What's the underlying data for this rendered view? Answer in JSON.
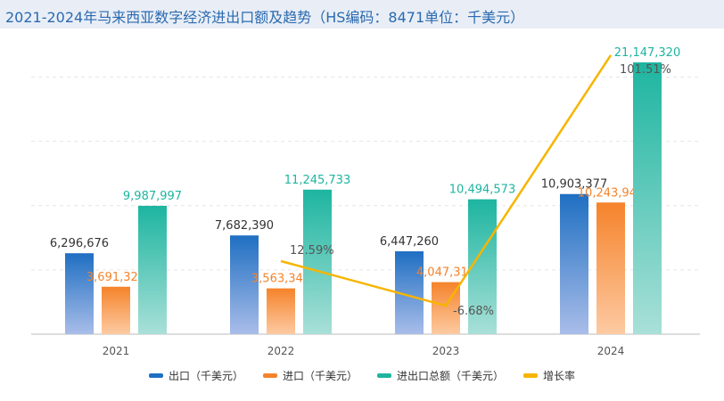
{
  "title": "2021-2024年马来西亚数字经济进出口额及趋势（HS编码：8471单位：千美元）",
  "chart_data": {
    "type": "bar+line",
    "categories": [
      "2021",
      "2022",
      "2023",
      "2024"
    ],
    "series": [
      {
        "name": "出口（千美元）",
        "type": "bar",
        "color": "#1f6fc2",
        "values": [
          6296676,
          7682390,
          6447260,
          10903377
        ],
        "labels": [
          "6,296,676",
          "7,682,390",
          "6,447,260",
          "10,903,377"
        ]
      },
      {
        "name": "进口（千美元）",
        "type": "bar",
        "color": "#f5832b",
        "values": [
          3691321,
          3563343,
          4047313,
          10243943
        ],
        "labels": [
          "3,691,321",
          "3,563,343",
          "4,047,313",
          "10,243,943"
        ]
      },
      {
        "name": "进出口总额（千美元）",
        "type": "bar",
        "color": "#1db5a0",
        "values": [
          9987997,
          11245733,
          10494573,
          21147320
        ],
        "labels": [
          "9,987,997",
          "11,245,733",
          "10,494,573",
          "21,147,320"
        ]
      },
      {
        "name": "增长率",
        "type": "line",
        "color": "#f7b500",
        "values": [
          null,
          12.59,
          -6.68,
          101.51
        ],
        "labels": [
          "",
          "12.59%",
          "-6.68%",
          "101.51%"
        ]
      }
    ],
    "ylim": [
      0,
      21147320
    ],
    "grid": true,
    "legend_position": "bottom"
  }
}
